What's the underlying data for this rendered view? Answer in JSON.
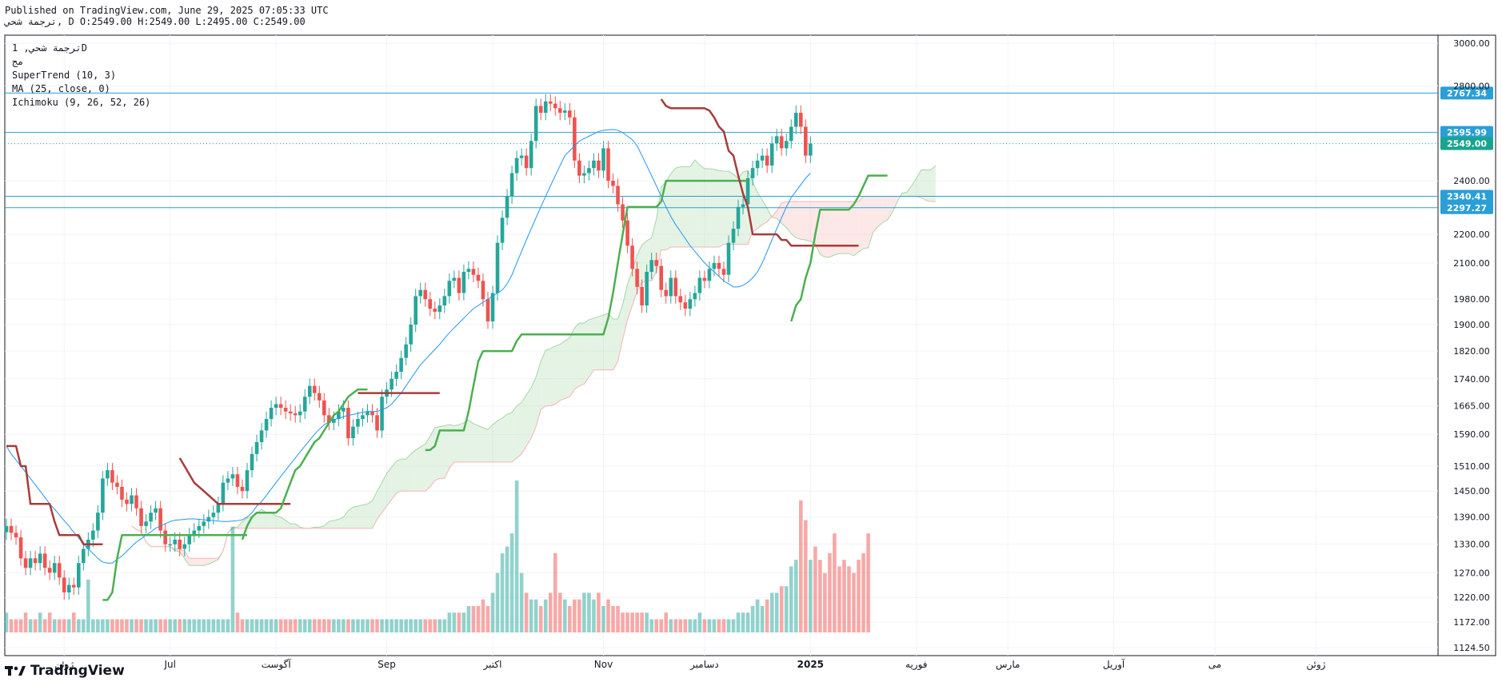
{
  "header": {
    "published": "Published on TradingView.com, June 29, 2025 07:05:33 UTC",
    "ohlc": "ترجمة شحي, D O:2549.00 H:2549.00 L:2495.00 C:2549.00"
  },
  "legend": {
    "symbol": "ترجمة شحي, 1D",
    "exchange": "مج",
    "supertrend": "SuperTrend (10, 3)",
    "ma": "MA (25, close, 0)",
    "ichimoku": "Ichimoku (9, 26, 52, 26)"
  },
  "brand": {
    "name": "TradingView"
  },
  "colors": {
    "up": "#26a69a",
    "down": "#ef5350",
    "ma": "#2196f3",
    "supertrend_up": "#4caf50",
    "supertrend_down": "#a83b3b",
    "cloud_up": "#a5d6a7",
    "cloud_down": "#f7b4b4",
    "hline": "#2a9fd6",
    "current": "#1aa38e"
  },
  "chart_data": {
    "type": "candlestick",
    "y_scale": "log",
    "ylim": [
      1110,
      3040
    ],
    "price_ticks": [
      3000,
      2800,
      2400,
      2200,
      2100,
      1980,
      1900,
      1820,
      1740,
      1665,
      1590,
      1510,
      1450,
      1390,
      1330,
      1270,
      1220,
      1172,
      1124.5
    ],
    "price_tick_labels": [
      "3000.00",
      "2800.00",
      "2400.00",
      "2200.00",
      "2100.00",
      "1980.00",
      "1900.00",
      "1820.00",
      "1740.00",
      "1665.00",
      "1590.00",
      "1510.00",
      "1450.00",
      "1390.00",
      "1330.00",
      "1270.00",
      "1220.00",
      "1172.00",
      "1124.50"
    ],
    "time_labels": [
      {
        "bar": 12,
        "text": "ژوئن",
        "bold": false
      },
      {
        "bar": 34,
        "text": "Jul",
        "bold": false
      },
      {
        "bar": 56,
        "text": "آگوست",
        "bold": false
      },
      {
        "bar": 79,
        "text": "Sep",
        "bold": false
      },
      {
        "bar": 101,
        "text": "اکتبر",
        "bold": false
      },
      {
        "bar": 124,
        "text": "Nov",
        "bold": false
      },
      {
        "bar": 145,
        "text": "دسامبر",
        "bold": false
      },
      {
        "bar": 167,
        "text": "2025",
        "bold": true
      },
      {
        "bar": 189,
        "text": "فوریه",
        "bold": false
      },
      {
        "bar": 208,
        "text": "مارس",
        "bold": false
      },
      {
        "bar": 230,
        "text": "آوریل",
        "bold": false
      },
      {
        "bar": 251,
        "text": "می",
        "bold": false
      },
      {
        "bar": 272,
        "text": "ژوئن",
        "bold": false
      }
    ],
    "horizontal_lines": [
      {
        "price": 2767.34,
        "label": "2767.34"
      },
      {
        "price": 2595.99,
        "label": "2595.99"
      },
      {
        "price": 2340.41,
        "label": "2340.41"
      },
      {
        "price": 2297.27,
        "label": "2297.27"
      }
    ],
    "current_price": {
      "price": 2549.0,
      "label": "2549.00"
    },
    "closes": [
      1370,
      1355,
      1345,
      1300,
      1280,
      1300,
      1290,
      1310,
      1280,
      1270,
      1290,
      1260,
      1230,
      1245,
      1240,
      1290,
      1320,
      1340,
      1360,
      1400,
      1480,
      1500,
      1470,
      1460,
      1430,
      1420,
      1440,
      1410,
      1370,
      1380,
      1400,
      1410,
      1360,
      1330,
      1330,
      1340,
      1320,
      1330,
      1350,
      1360,
      1370,
      1380,
      1390,
      1400,
      1420,
      1470,
      1480,
      1490,
      1460,
      1450,
      1500,
      1540,
      1570,
      1600,
      1630,
      1660,
      1670,
      1660,
      1650,
      1645,
      1640,
      1650,
      1690,
      1720,
      1700,
      1680,
      1640,
      1620,
      1630,
      1650,
      1660,
      1580,
      1610,
      1630,
      1640,
      1650,
      1640,
      1600,
      1690,
      1710,
      1740,
      1760,
      1800,
      1840,
      1900,
      1990,
      2010,
      1980,
      1950,
      1940,
      1960,
      1990,
      2040,
      2050,
      2000,
      2070,
      2080,
      2060,
      2040,
      1980,
      1910,
      2000,
      2170,
      2260,
      2340,
      2430,
      2490,
      2500,
      2450,
      2560,
      2710,
      2680,
      2730,
      2720,
      2700,
      2680,
      2690,
      2660,
      2480,
      2420,
      2430,
      2450,
      2480,
      2440,
      2530,
      2400,
      2380,
      2310,
      2250,
      2160,
      2080,
      2020,
      1960,
      2070,
      2110,
      2090,
      2010,
      1990,
      2050,
      1990,
      1970,
      1950,
      1980,
      2000,
      2050,
      2040,
      2080,
      2100,
      2080,
      2060,
      2170,
      2220,
      2300,
      2310,
      2410,
      2450,
      2480,
      2500,
      2460,
      2550,
      2580,
      2530,
      2560,
      2620,
      2680,
      2620,
      2500,
      2549
    ],
    "volumes": [
      3,
      2,
      2,
      2,
      3,
      2,
      2,
      3,
      2,
      3,
      2,
      2,
      2,
      2,
      3,
      2,
      2,
      8,
      2,
      2,
      2,
      2,
      2,
      2,
      2,
      2,
      2,
      2,
      2,
      2,
      2,
      2,
      2,
      2,
      2,
      2,
      2,
      2,
      2,
      2,
      2,
      2,
      2,
      2,
      2,
      2,
      2,
      16,
      3,
      2,
      2,
      2,
      2,
      2,
      2,
      2,
      2,
      2,
      2,
      2,
      2,
      2,
      2,
      2,
      2,
      2,
      2,
      2,
      2,
      2,
      2,
      2,
      2,
      2,
      2,
      2,
      2,
      2,
      2,
      2,
      2,
      2,
      2,
      2,
      2,
      2,
      2,
      2,
      2,
      2,
      2,
      2,
      3,
      3,
      3,
      3,
      4,
      4,
      4,
      5,
      4,
      6,
      9,
      12,
      13,
      15,
      23,
      9,
      6,
      5,
      5,
      4,
      5,
      6,
      12,
      6,
      5,
      4,
      5,
      5,
      6,
      6,
      5,
      6,
      4,
      5,
      4,
      4,
      3,
      3,
      3,
      3,
      3,
      3,
      2,
      2,
      2,
      3,
      2,
      2,
      2,
      2,
      2,
      2,
      3,
      2,
      2,
      2,
      2,
      2,
      2,
      2,
      3,
      3,
      3,
      4,
      5,
      4,
      5,
      6,
      6,
      7,
      7,
      10,
      11,
      20,
      17,
      11,
      13,
      11,
      9,
      12,
      15,
      10,
      11,
      10,
      9,
      11,
      12,
      15
    ],
    "supertrend_segments": [
      {
        "dir": "down",
        "start": 0,
        "values": [
          1560,
          1560,
          1560,
          1510,
          1510,
          1420,
          1420,
          1420,
          1420,
          1420,
          1380,
          1350,
          1350,
          1350,
          1350,
          1350,
          1330,
          1330,
          1330,
          1330,
          1330
        ]
      },
      {
        "dir": "up",
        "start": 20,
        "values": [
          1215,
          1215,
          1230,
          1300,
          1350,
          1350,
          1350,
          1350,
          1350,
          1350,
          1350,
          1350,
          1350,
          1350,
          1350,
          1350,
          1350,
          1350,
          1350,
          1350,
          1350,
          1350,
          1350,
          1350,
          1350,
          1350,
          1350,
          1350,
          1350,
          1350,
          1350
        ]
      },
      {
        "dir": "down",
        "start": 36,
        "values": [
          1530,
          1510,
          1490,
          1470,
          1460,
          1450,
          1440,
          1430,
          1420,
          1420,
          1420,
          1420,
          1420,
          1420,
          1420,
          1420,
          1420,
          1420,
          1420,
          1420,
          1420,
          1420,
          1420,
          1420
        ]
      },
      {
        "dir": "up",
        "start": 49,
        "values": [
          1340,
          1370,
          1390,
          1400,
          1400,
          1400,
          1400,
          1400,
          1410,
          1440,
          1470,
          1500,
          1510,
          1530,
          1550,
          1570,
          1580,
          1600,
          1620,
          1640,
          1650,
          1670,
          1690,
          1700,
          1710,
          1710,
          1710
        ]
      },
      {
        "dir": "down",
        "start": 73,
        "values": [
          1700,
          1700,
          1700,
          1700,
          1700,
          1700,
          1700,
          1700,
          1700,
          1700,
          1700,
          1700,
          1700,
          1700,
          1700,
          1700,
          1700,
          1700
        ]
      },
      {
        "dir": "up",
        "start": 87,
        "values": [
          1550,
          1550,
          1560,
          1600,
          1600,
          1600,
          1600,
          1600,
          1600,
          1650,
          1720,
          1790,
          1820,
          1820,
          1820,
          1820,
          1820,
          1820,
          1820,
          1850,
          1870,
          1870,
          1870,
          1870,
          1870,
          1870,
          1870,
          1870,
          1870,
          1870,
          1870,
          1870,
          1870,
          1870,
          1870,
          1870,
          1870,
          1870,
          1920,
          2000,
          2100,
          2200,
          2300,
          2300,
          2300,
          2300,
          2300,
          2300,
          2300,
          2320,
          2400,
          2400,
          2400,
          2400,
          2400,
          2400,
          2400,
          2400,
          2400,
          2400,
          2400,
          2400,
          2400,
          2400,
          2400,
          2400,
          2400,
          2400
        ]
      },
      {
        "dir": "down",
        "start": 136,
        "values": [
          2740,
          2710,
          2700,
          2700,
          2700,
          2700,
          2700,
          2700,
          2700,
          2700,
          2690,
          2660,
          2620,
          2600,
          2520,
          2500,
          2420,
          2350,
          2300,
          2200,
          2200,
          2200,
          2200,
          2200,
          2200,
          2180,
          2180,
          2160,
          2160,
          2160,
          2160,
          2160,
          2160,
          2160,
          2160,
          2160,
          2160,
          2160,
          2160,
          2160,
          2160,
          2160
        ]
      },
      {
        "dir": "up",
        "start": 163,
        "values": [
          1910,
          1960,
          1980,
          2050,
          2100,
          2200,
          2290,
          2290,
          2290,
          2290,
          2290,
          2290,
          2290,
          2310,
          2340,
          2380,
          2420,
          2420,
          2420,
          2420,
          2420
        ]
      }
    ],
    "ma": [
      1560,
      1540,
      1525,
      1510,
      1495,
      1480,
      1465,
      1450,
      1435,
      1420,
      1408,
      1395,
      1382,
      1370,
      1356,
      1344,
      1330,
      1320,
      1310,
      1300,
      1292,
      1290,
      1290,
      1298,
      1305,
      1315,
      1325,
      1335,
      1342,
      1350,
      1357,
      1365,
      1370,
      1375,
      1380,
      1383,
      1384,
      1385,
      1386,
      1386,
      1385,
      1384,
      1383,
      1382,
      1381,
      1380,
      1380,
      1381,
      1382,
      1384,
      1390,
      1400,
      1415,
      1425,
      1440,
      1455,
      1470,
      1485,
      1500,
      1515,
      1530,
      1545,
      1560,
      1575,
      1590,
      1603,
      1615,
      1622,
      1628,
      1632,
      1636,
      1640,
      1642,
      1645,
      1648,
      1650,
      1650,
      1650,
      1655,
      1660,
      1670,
      1685,
      1700,
      1720,
      1740,
      1760,
      1780,
      1795,
      1810,
      1825,
      1840,
      1858,
      1875,
      1890,
      1905,
      1920,
      1935,
      1950,
      1960,
      1970,
      1980,
      1990,
      2000,
      2010,
      2030,
      2060,
      2100,
      2140,
      2180,
      2220,
      2260,
      2300,
      2340,
      2380,
      2420,
      2460,
      2500,
      2520,
      2540,
      2560,
      2570,
      2580,
      2590,
      2600,
      2605,
      2607,
      2608,
      2605,
      2595,
      2580,
      2565,
      2540,
      2500,
      2460,
      2420,
      2380,
      2340,
      2300,
      2265,
      2235,
      2210,
      2185,
      2160,
      2140,
      2120,
      2100,
      2085,
      2070,
      2055,
      2040,
      2030,
      2020,
      2020,
      2025,
      2035,
      2050,
      2070,
      2100,
      2140,
      2180,
      2220,
      2260,
      2300,
      2335,
      2360,
      2385,
      2410,
      2430
    ]
  }
}
